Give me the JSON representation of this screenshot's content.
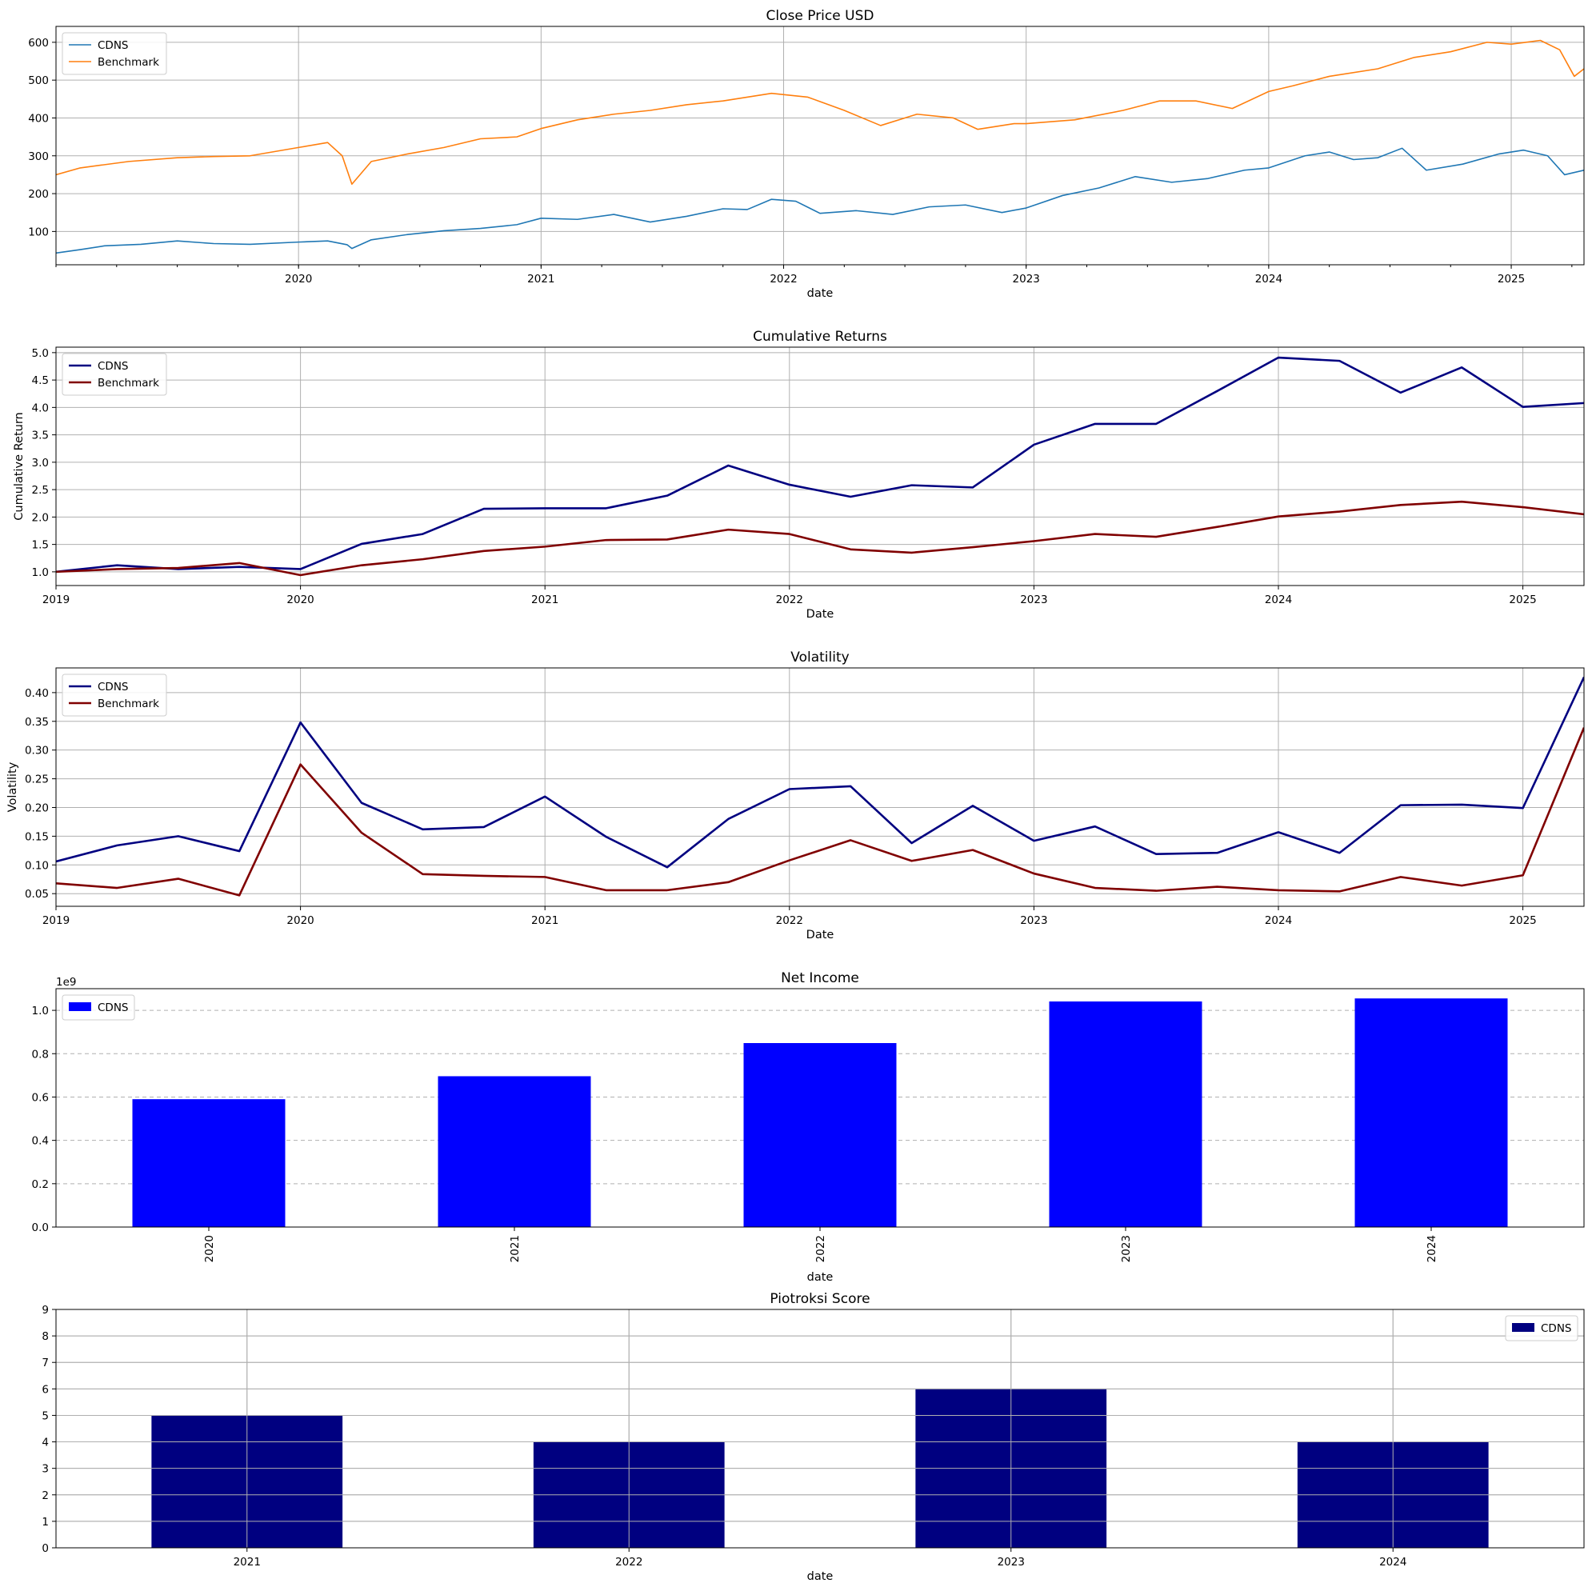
{
  "chart_data": [
    {
      "type": "line",
      "title": "Close Price USD",
      "xlabel": "date",
      "ylabel": "",
      "xlim": [
        2019.0,
        2025.3
      ],
      "ylim": [
        12,
        642
      ],
      "x_ticks": [
        2020,
        2021,
        2022,
        2023,
        2024,
        2025
      ],
      "y_ticks": [
        100,
        200,
        300,
        400,
        500,
        600
      ],
      "grid": "both",
      "legend": "top-left",
      "series": [
        {
          "name": "CDNS",
          "color": "#1f77b4",
          "x": [
            2019.0,
            2019.1,
            2019.2,
            2019.35,
            2019.5,
            2019.65,
            2019.8,
            2020.0,
            2020.12,
            2020.2,
            2020.22,
            2020.3,
            2020.45,
            2020.6,
            2020.75,
            2020.9,
            2021.0,
            2021.15,
            2021.3,
            2021.45,
            2021.6,
            2021.75,
            2021.85,
            2021.95,
            2022.05,
            2022.15,
            2022.3,
            2022.45,
            2022.6,
            2022.75,
            2022.9,
            2023.0,
            2023.15,
            2023.3,
            2023.45,
            2023.6,
            2023.75,
            2023.9,
            2024.0,
            2024.15,
            2024.25,
            2024.35,
            2024.45,
            2024.55,
            2024.65,
            2024.8,
            2024.95,
            2025.05,
            2025.15,
            2025.22,
            2025.3
          ],
          "y": [
            43,
            52,
            62,
            66,
            75,
            68,
            66,
            72,
            75,
            65,
            55,
            78,
            92,
            102,
            108,
            118,
            135,
            132,
            145,
            125,
            140,
            160,
            158,
            185,
            180,
            148,
            155,
            145,
            165,
            170,
            150,
            162,
            195,
            215,
            245,
            230,
            240,
            262,
            268,
            300,
            310,
            290,
            295,
            320,
            262,
            278,
            305,
            315,
            300,
            250,
            262
          ]
        },
        {
          "name": "Benchmark",
          "color": "#ff7f0e",
          "x": [
            2019.0,
            2019.1,
            2019.3,
            2019.5,
            2019.65,
            2019.8,
            2020.0,
            2020.12,
            2020.18,
            2020.22,
            2020.3,
            2020.45,
            2020.6,
            2020.75,
            2020.9,
            2021.0,
            2021.15,
            2021.3,
            2021.45,
            2021.6,
            2021.75,
            2021.85,
            2021.95,
            2022.1,
            2022.25,
            2022.4,
            2022.55,
            2022.7,
            2022.8,
            2022.95,
            2023.0,
            2023.2,
            2023.4,
            2023.55,
            2023.7,
            2023.85,
            2024.0,
            2024.1,
            2024.25,
            2024.45,
            2024.6,
            2024.75,
            2024.9,
            2025.0,
            2025.12,
            2025.2,
            2025.26,
            2025.3
          ],
          "y": [
            250,
            268,
            285,
            295,
            298,
            300,
            322,
            335,
            300,
            225,
            285,
            305,
            322,
            345,
            350,
            372,
            395,
            410,
            420,
            435,
            445,
            455,
            465,
            455,
            420,
            380,
            410,
            400,
            370,
            385,
            385,
            395,
            420,
            445,
            445,
            425,
            470,
            485,
            510,
            530,
            560,
            575,
            600,
            595,
            605,
            580,
            510,
            530
          ]
        }
      ]
    },
    {
      "type": "line",
      "title": "Cumulative Returns",
      "xlabel": "Date",
      "ylabel": "Cumulative Return",
      "xlim": [
        2019.0,
        2025.25
      ],
      "ylim": [
        0.75,
        5.1
      ],
      "x_ticks": [
        2019,
        2020,
        2021,
        2022,
        2023,
        2024,
        2025
      ],
      "y_ticks": [
        1.0,
        1.5,
        2.0,
        2.5,
        3.0,
        3.5,
        4.0,
        4.5,
        5.0
      ],
      "grid": "both",
      "legend": "top-left",
      "series": [
        {
          "name": "CDNS",
          "color": "#000080",
          "x": [
            2019.0,
            2019.25,
            2019.5,
            2019.75,
            2020.0,
            2020.25,
            2020.5,
            2020.75,
            2021.0,
            2021.25,
            2021.5,
            2021.75,
            2022.0,
            2022.25,
            2022.5,
            2022.75,
            2023.0,
            2023.25,
            2023.5,
            2023.75,
            2024.0,
            2024.25,
            2024.5,
            2024.75,
            2025.0,
            2025.25
          ],
          "y": [
            1.0,
            1.12,
            1.05,
            1.09,
            1.05,
            1.51,
            1.69,
            2.15,
            2.16,
            2.16,
            2.39,
            2.94,
            2.59,
            2.37,
            2.58,
            2.54,
            3.32,
            3.7,
            3.7,
            4.3,
            4.91,
            4.85,
            4.27,
            4.73,
            4.01,
            4.08
          ]
        },
        {
          "name": "Benchmark",
          "color": "#800000",
          "x": [
            2019.0,
            2019.25,
            2019.5,
            2019.75,
            2020.0,
            2020.25,
            2020.5,
            2020.75,
            2021.0,
            2021.25,
            2021.5,
            2021.75,
            2022.0,
            2022.25,
            2022.5,
            2022.75,
            2023.0,
            2023.25,
            2023.5,
            2023.75,
            2024.0,
            2024.25,
            2024.5,
            2024.75,
            2025.0,
            2025.25
          ],
          "y": [
            1.0,
            1.05,
            1.07,
            1.16,
            0.94,
            1.12,
            1.23,
            1.38,
            1.46,
            1.58,
            1.59,
            1.77,
            1.69,
            1.41,
            1.35,
            1.45,
            1.56,
            1.69,
            1.64,
            1.82,
            2.01,
            2.1,
            2.22,
            2.28,
            2.18,
            2.05
          ]
        }
      ]
    },
    {
      "type": "line",
      "title": "Volatility",
      "xlabel": "Date",
      "ylabel": "Volatility",
      "xlim": [
        2019.0,
        2025.25
      ],
      "ylim": [
        0.028,
        0.443
      ],
      "x_ticks": [
        2019,
        2020,
        2021,
        2022,
        2023,
        2024,
        2025
      ],
      "y_ticks": [
        0.05,
        0.1,
        0.15,
        0.2,
        0.25,
        0.3,
        0.35,
        0.4
      ],
      "grid": "both",
      "legend": "top-left",
      "series": [
        {
          "name": "CDNS",
          "color": "#000080",
          "x": [
            2019.0,
            2019.25,
            2019.5,
            2019.75,
            2020.0,
            2020.25,
            2020.5,
            2020.75,
            2021.0,
            2021.25,
            2021.5,
            2021.75,
            2022.0,
            2022.25,
            2022.5,
            2022.75,
            2023.0,
            2023.25,
            2023.5,
            2023.75,
            2024.0,
            2024.25,
            2024.5,
            2024.75,
            2025.0,
            2025.25
          ],
          "y": [
            0.106,
            0.134,
            0.15,
            0.124,
            0.348,
            0.208,
            0.162,
            0.166,
            0.219,
            0.149,
            0.096,
            0.18,
            0.232,
            0.237,
            0.138,
            0.203,
            0.142,
            0.167,
            0.119,
            0.121,
            0.157,
            0.121,
            0.204,
            0.205,
            0.199,
            0.427
          ]
        },
        {
          "name": "Benchmark",
          "color": "#800000",
          "x": [
            2019.0,
            2019.25,
            2019.5,
            2019.75,
            2020.0,
            2020.25,
            2020.5,
            2020.75,
            2021.0,
            2021.25,
            2021.5,
            2021.75,
            2022.0,
            2022.25,
            2022.5,
            2022.75,
            2023.0,
            2023.25,
            2023.5,
            2023.75,
            2024.0,
            2024.25,
            2024.5,
            2024.75,
            2025.0,
            2025.25
          ],
          "y": [
            0.068,
            0.06,
            0.076,
            0.047,
            0.275,
            0.156,
            0.084,
            0.081,
            0.079,
            0.056,
            0.056,
            0.07,
            0.108,
            0.143,
            0.107,
            0.126,
            0.085,
            0.06,
            0.055,
            0.062,
            0.056,
            0.054,
            0.079,
            0.064,
            0.082,
            0.339
          ]
        }
      ]
    },
    {
      "type": "bar",
      "title": "Net Income",
      "xlabel": "date",
      "ylabel": "",
      "offset_text": "1e9",
      "categories": [
        "2020",
        "2021",
        "2022",
        "2023",
        "2024"
      ],
      "ylim": [
        0,
        1.1
      ],
      "y_ticks": [
        0.0,
        0.2,
        0.4,
        0.6,
        0.8,
        1.0
      ],
      "tick_rotation": "vertical",
      "grid": "y-dashed",
      "legend": "top-left",
      "series": [
        {
          "name": "CDNS",
          "color": "#0000ff",
          "values": [
            0.59,
            0.696,
            0.849,
            1.041,
            1.055
          ]
        }
      ]
    },
    {
      "type": "bar",
      "title": "Piotroksi Score",
      "xlabel": "date",
      "ylabel": "",
      "categories": [
        "2021",
        "2022",
        "2023",
        "2024"
      ],
      "ylim": [
        0,
        9
      ],
      "y_ticks": [
        0,
        1,
        2,
        3,
        4,
        5,
        6,
        7,
        8,
        9
      ],
      "grid": "both",
      "legend": "top-right",
      "series": [
        {
          "name": "CDNS",
          "color": "#000080",
          "values": [
            5,
            4,
            6,
            4
          ]
        }
      ]
    }
  ]
}
